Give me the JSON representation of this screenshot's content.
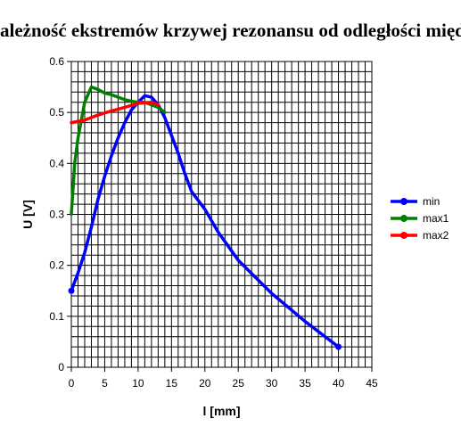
{
  "chart_data": {
    "type": "line",
    "title": "Zależność ekstremów krzywej rezonansu od odległości między",
    "xlabel": "l [mm]",
    "ylabel": "U [V]",
    "xlim": [
      0,
      45
    ],
    "ylim": [
      0,
      0.6
    ],
    "x_ticks": [
      "0",
      "5",
      "10",
      "15",
      "20",
      "25",
      "30",
      "35",
      "40",
      "45"
    ],
    "y_ticks": [
      "0",
      "0.1",
      "0.2",
      "0.3",
      "0.4",
      "0.5",
      "0.6"
    ],
    "grid": true,
    "legend_position": "right",
    "series": [
      {
        "name": "min",
        "color": "#0000ff",
        "points": [
          [
            0,
            0.15
          ],
          [
            1,
            0.185
          ],
          [
            2,
            0.225
          ],
          [
            3,
            0.275
          ],
          [
            4,
            0.33
          ],
          [
            5,
            0.375
          ],
          [
            6,
            0.415
          ],
          [
            7,
            0.45
          ],
          [
            8,
            0.48
          ],
          [
            9,
            0.505
          ],
          [
            10,
            0.52
          ],
          [
            11,
            0.533
          ],
          [
            12,
            0.53
          ],
          [
            13,
            0.515
          ],
          [
            14,
            0.49
          ],
          [
            15,
            0.455
          ],
          [
            16,
            0.42
          ],
          [
            17,
            0.38
          ],
          [
            18,
            0.345
          ],
          [
            20,
            0.31
          ],
          [
            22,
            0.265
          ],
          [
            25,
            0.21
          ],
          [
            30,
            0.145
          ],
          [
            35,
            0.09
          ],
          [
            40,
            0.04
          ]
        ]
      },
      {
        "name": "max1",
        "color": "#008000",
        "points": [
          [
            0,
            0.3
          ],
          [
            0.5,
            0.4
          ],
          [
            1,
            0.45
          ],
          [
            2,
            0.52
          ],
          [
            3,
            0.55
          ],
          [
            4,
            0.545
          ],
          [
            5,
            0.538
          ],
          [
            6,
            0.535
          ],
          [
            7,
            0.53
          ],
          [
            8,
            0.525
          ],
          [
            9,
            0.522
          ],
          [
            10,
            0.52
          ],
          [
            11,
            0.52
          ],
          [
            12,
            0.515
          ],
          [
            13,
            0.51
          ],
          [
            14,
            0.5
          ]
        ]
      },
      {
        "name": "max2",
        "color": "#ff0000",
        "points": [
          [
            0,
            0.48
          ],
          [
            2,
            0.485
          ],
          [
            4,
            0.495
          ],
          [
            6,
            0.503
          ],
          [
            8,
            0.51
          ],
          [
            10,
            0.518
          ],
          [
            12,
            0.52
          ],
          [
            13,
            0.515
          ]
        ]
      }
    ]
  }
}
